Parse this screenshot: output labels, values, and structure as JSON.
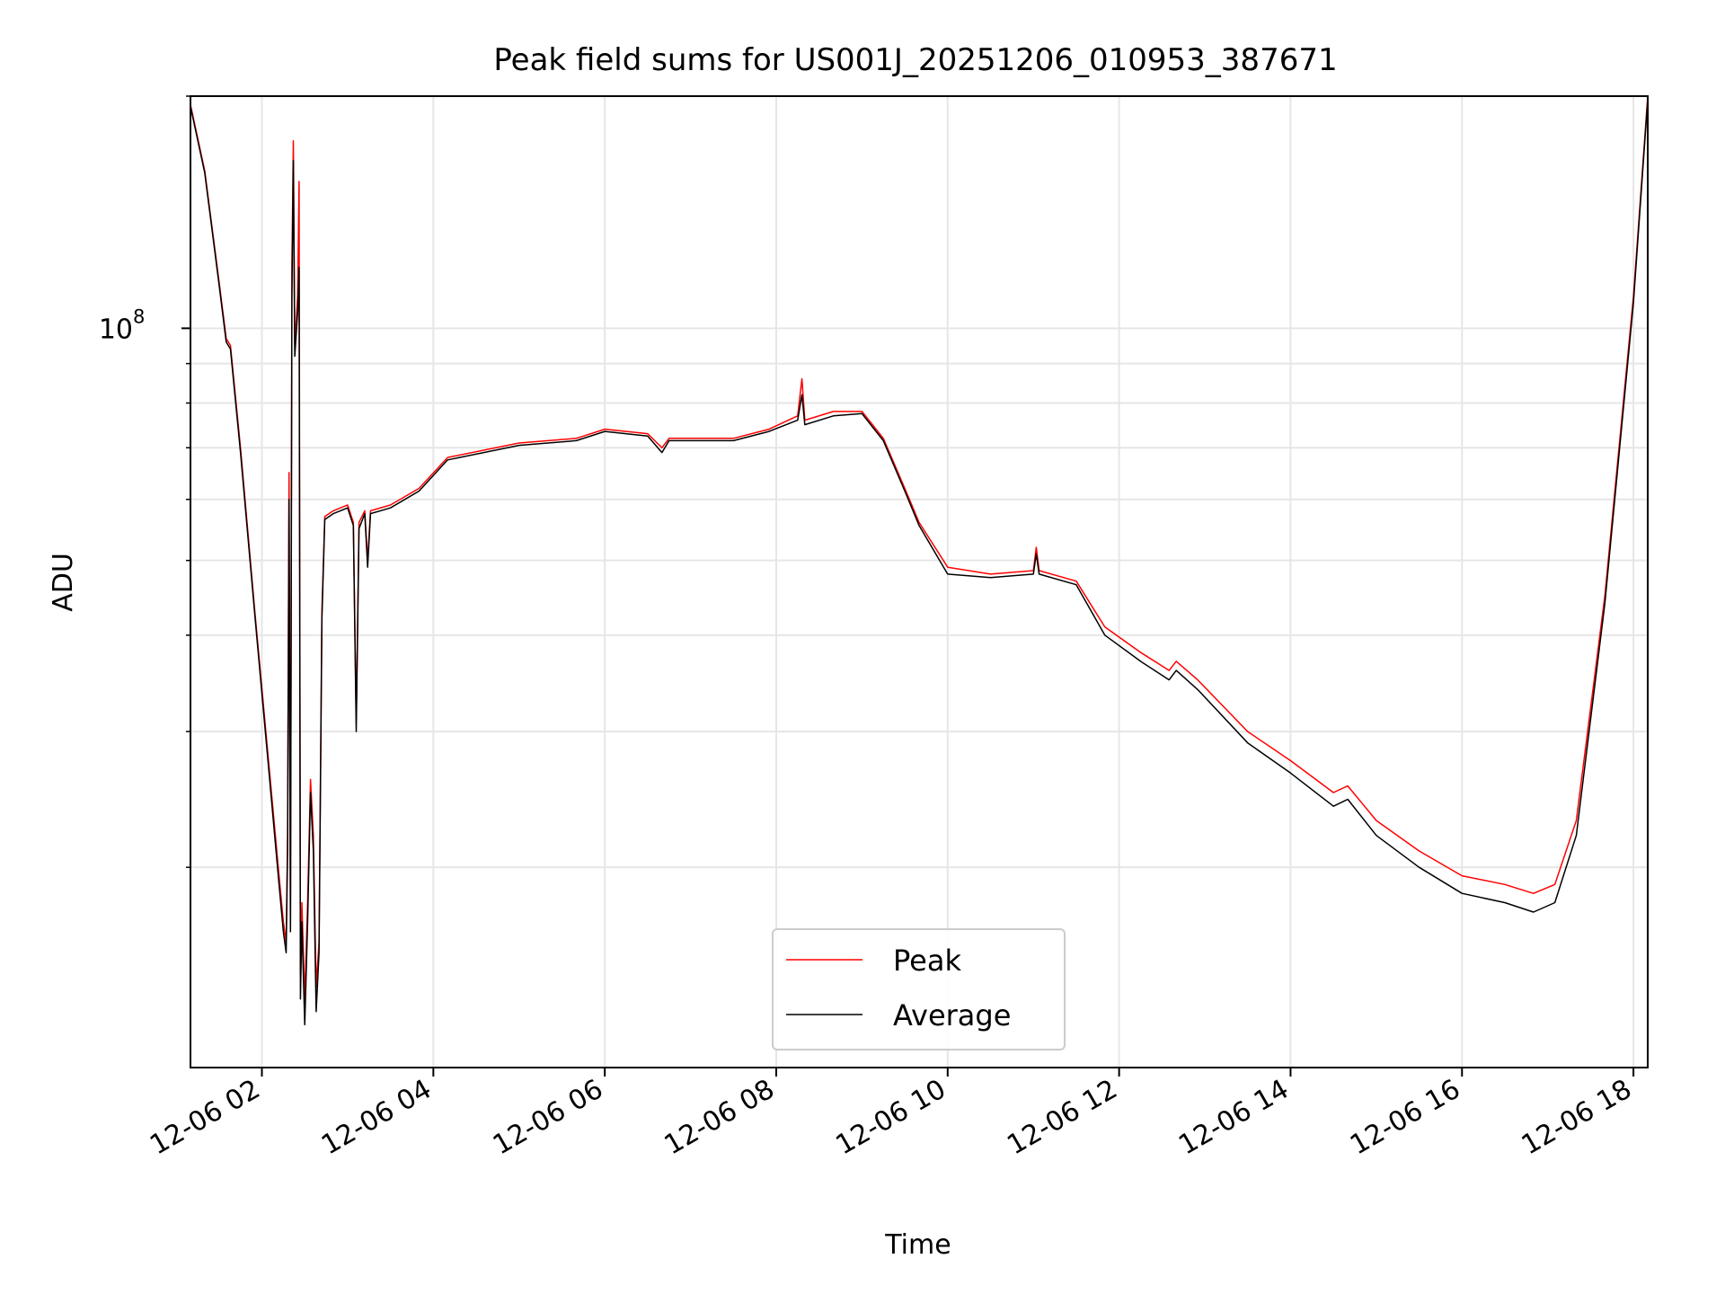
{
  "chart_data": {
    "type": "line",
    "title": "Peak field sums for US001J_20251206_010953_387671",
    "xlabel": "Time",
    "ylabel": "ADU",
    "y_scale": "log",
    "ylim": [
      11000000,
      200000000
    ],
    "xlim": [
      "2025-12-06T01:10:00",
      "2025-12-06T18:10:00"
    ],
    "x_ticks": [
      "2025-12-06T02:00:00",
      "2025-12-06T04:00:00",
      "2025-12-06T06:00:00",
      "2025-12-06T08:00:00",
      "2025-12-06T10:00:00",
      "2025-12-06T12:00:00",
      "2025-12-06T14:00:00",
      "2025-12-06T16:00:00",
      "2025-12-06T18:00:00"
    ],
    "x_tick_labels": [
      "12-06 02",
      "12-06 04",
      "12-06 06",
      "12-06 08",
      "12-06 10",
      "12-06 12",
      "12-06 14",
      "12-06 16",
      "12-06 18"
    ],
    "y_tick_labels": [
      {
        "value": 100000000,
        "base": "10",
        "exponent": "8"
      }
    ],
    "grid": true,
    "legend": {
      "position": "lower-center",
      "entries": [
        "Peak",
        "Average"
      ]
    },
    "colors": {
      "Peak": "#ff0000",
      "Average": "#000000"
    },
    "x": [
      "2025-12-06T01:10:00",
      "2025-12-06T01:20:00",
      "2025-12-06T01:30:00",
      "2025-12-06T01:35:00",
      "2025-12-06T01:38:00",
      "2025-12-06T01:45:00",
      "2025-12-06T01:55:00",
      "2025-12-06T02:05:00",
      "2025-12-06T02:12:00",
      "2025-12-06T02:15:00",
      "2025-12-06T02:17:00",
      "2025-12-06T02:18:00",
      "2025-12-06T02:19:00",
      "2025-12-06T02:20:00",
      "2025-12-06T02:21:00",
      "2025-12-06T02:22:00",
      "2025-12-06T02:23:00",
      "2025-12-06T02:25:00",
      "2025-12-06T02:26:00",
      "2025-12-06T02:27:00",
      "2025-12-06T02:28:00",
      "2025-12-06T02:30:00",
      "2025-12-06T02:32:00",
      "2025-12-06T02:34:00",
      "2025-12-06T02:36:00",
      "2025-12-06T02:38:00",
      "2025-12-06T02:40:00",
      "2025-12-06T02:42:00",
      "2025-12-06T02:44:00",
      "2025-12-06T02:50:00",
      "2025-12-06T03:00:00",
      "2025-12-06T03:04:00",
      "2025-12-06T03:06:00",
      "2025-12-06T03:08:00",
      "2025-12-06T03:12:00",
      "2025-12-06T03:14:00",
      "2025-12-06T03:16:00",
      "2025-12-06T03:30:00",
      "2025-12-06T03:50:00",
      "2025-12-06T04:10:00",
      "2025-12-06T05:00:00",
      "2025-12-06T05:40:00",
      "2025-12-06T06:00:00",
      "2025-12-06T06:30:00",
      "2025-12-06T06:40:00",
      "2025-12-06T06:45:00",
      "2025-12-06T07:00:00",
      "2025-12-06T07:30:00",
      "2025-12-06T07:55:00",
      "2025-12-06T08:15:00",
      "2025-12-06T08:18:00",
      "2025-12-06T08:20:00",
      "2025-12-06T08:40:00",
      "2025-12-06T09:00:00",
      "2025-12-06T09:15:00",
      "2025-12-06T09:30:00",
      "2025-12-06T09:40:00",
      "2025-12-06T10:00:00",
      "2025-12-06T10:30:00",
      "2025-12-06T11:00:00",
      "2025-12-06T11:02:00",
      "2025-12-06T11:04:00",
      "2025-12-06T11:30:00",
      "2025-12-06T11:50:00",
      "2025-12-06T12:15:00",
      "2025-12-06T12:35:00",
      "2025-12-06T12:40:00",
      "2025-12-06T12:55:00",
      "2025-12-06T13:30:00",
      "2025-12-06T14:00:00",
      "2025-12-06T14:30:00",
      "2025-12-06T14:40:00",
      "2025-12-06T15:00:00",
      "2025-12-06T15:30:00",
      "2025-12-06T16:00:00",
      "2025-12-06T16:30:00",
      "2025-12-06T16:50:00",
      "2025-12-06T17:05:00",
      "2025-12-06T17:20:00",
      "2025-12-06T17:40:00",
      "2025-12-06T18:00:00",
      "2025-12-06T18:10:00"
    ],
    "series": [
      {
        "name": "Peak",
        "values": [
          195000000,
          160000000,
          115000000,
          97000000,
          95000000,
          70000000,
          43000000,
          27000000,
          19500000,
          17000000,
          16000000,
          22000000,
          65000000,
          17000000,
          120000000,
          175000000,
          95000000,
          110000000,
          155000000,
          14500000,
          18000000,
          13500000,
          18000000,
          26000000,
          22000000,
          14000000,
          16000000,
          43000000,
          57000000,
          58000000,
          59000000,
          56000000,
          31000000,
          56000000,
          58000000,
          50000000,
          58000000,
          59000000,
          62000000,
          68000000,
          71000000,
          72000000,
          74000000,
          73000000,
          70000000,
          72000000,
          72000000,
          72000000,
          74000000,
          77000000,
          86000000,
          76000000,
          78000000,
          78000000,
          72000000,
          62000000,
          56000000,
          49000000,
          48000000,
          48500000,
          52000000,
          48500000,
          47000000,
          41000000,
          38000000,
          36000000,
          37000000,
          35000000,
          30000000,
          27500000,
          25000000,
          25500000,
          23000000,
          21000000,
          19500000,
          19000000,
          18500000,
          19000000,
          23000000,
          45000000,
          110000000,
          200000000
        ]
      },
      {
        "name": "Average",
        "values": [
          194000000,
          159000000,
          114000000,
          96000000,
          94000000,
          69000000,
          42500000,
          26500000,
          19000000,
          16500000,
          15500000,
          21000000,
          60000000,
          16500000,
          110000000,
          165000000,
          92000000,
          105000000,
          120000000,
          13500000,
          17000000,
          12500000,
          17000000,
          25000000,
          21000000,
          13000000,
          15500000,
          42000000,
          56500000,
          57500000,
          58500000,
          55500000,
          30000000,
          55000000,
          57500000,
          49000000,
          57500000,
          58500000,
          61500000,
          67500000,
          70500000,
          71500000,
          73500000,
          72500000,
          69000000,
          71500000,
          71500000,
          71500000,
          73500000,
          76000000,
          82000000,
          75000000,
          77000000,
          77500000,
          71500000,
          61500000,
          55500000,
          48000000,
          47500000,
          48000000,
          51000000,
          48000000,
          46500000,
          40000000,
          37000000,
          35000000,
          36000000,
          34000000,
          29000000,
          26500000,
          24000000,
          24500000,
          22000000,
          20000000,
          18500000,
          18000000,
          17500000,
          18000000,
          22000000,
          44000000,
          108000000,
          198000000
        ]
      }
    ]
  }
}
